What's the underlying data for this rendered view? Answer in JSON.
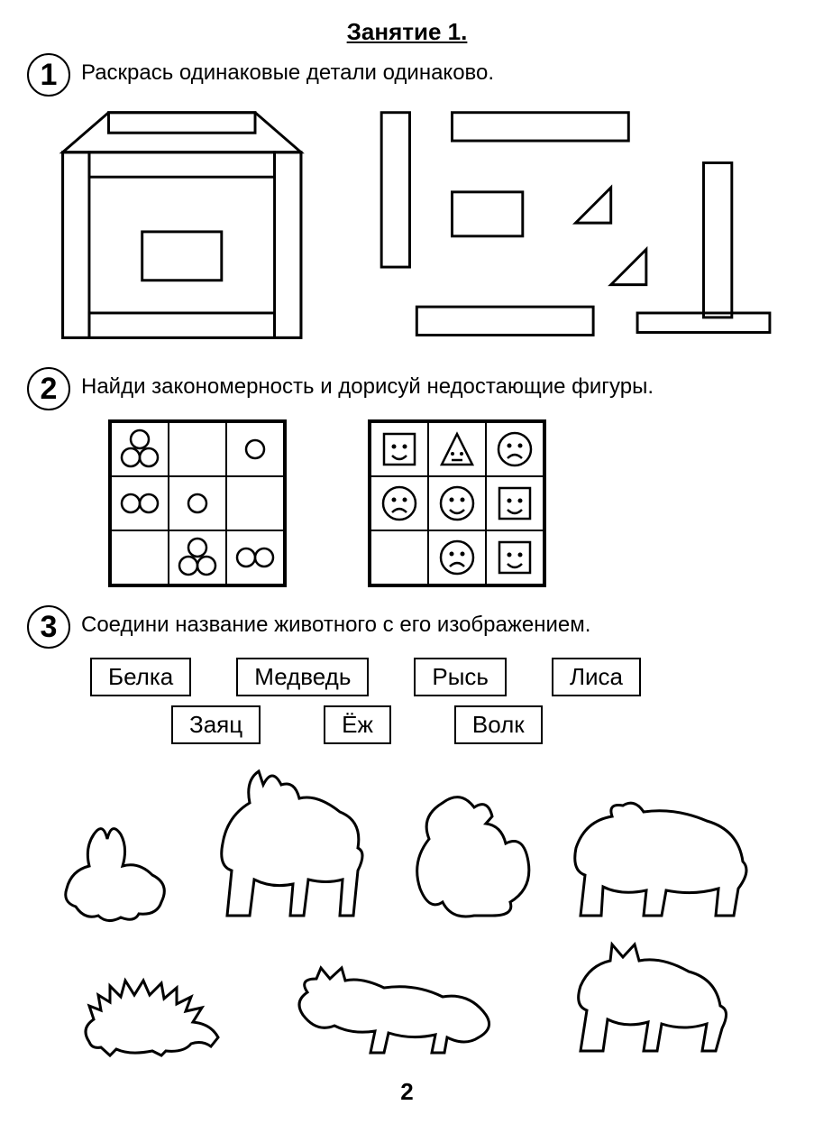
{
  "title": "Занятие 1.",
  "page_number": "2",
  "stroke": "#000000",
  "bg": "#ffffff",
  "tasks": {
    "t1": {
      "num": "1",
      "instr": "Раскрась одинаковые детали одинаково."
    },
    "t2": {
      "num": "2",
      "instr": "Найди закономерность и дорисуй недостающие фигуры.",
      "grid_left": [
        [
          "3c",
          "",
          "1c"
        ],
        [
          "2c",
          "1c",
          ""
        ],
        [
          "",
          "3c",
          "2c"
        ]
      ],
      "grid_right": [
        [
          "sq-sm",
          "tri",
          "ci-sad"
        ],
        [
          "ci-sad",
          "ci-sm",
          "sq-sm"
        ],
        [
          "",
          "ci-sad",
          "sq-sm"
        ]
      ]
    },
    "t3": {
      "num": "3",
      "instr": "Соедини название животного с его изображением.",
      "row1": [
        "Белка",
        "Медведь",
        "Рысь",
        "Лиса"
      ],
      "row2": [
        "Заяц",
        "Ёж",
        "Волк"
      ]
    }
  }
}
